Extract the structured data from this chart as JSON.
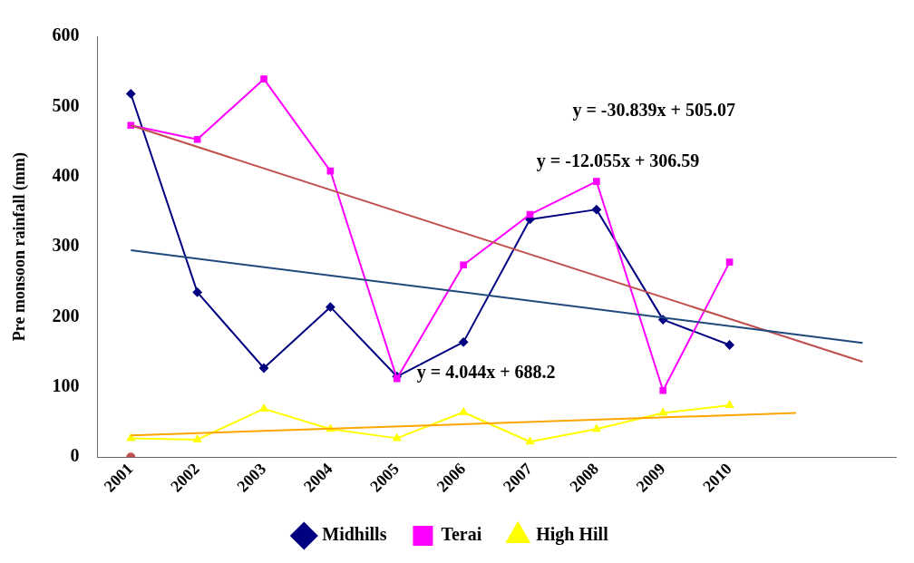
{
  "chart_data": {
    "type": "line",
    "ylabel": "Pre monsoon rainfall (mm)",
    "categories": [
      "2001",
      "2002",
      "2003",
      "2004",
      "2005",
      "2006",
      "2007",
      "2008",
      "2009",
      "2010",
      null,
      null
    ],
    "ylim": [
      0,
      600
    ],
    "yticks": [
      0,
      100,
      200,
      300,
      400,
      500,
      600
    ],
    "grid": false,
    "legend": "bottom",
    "line_style": "solid",
    "series": [
      {
        "name": "Midhills",
        "color": "#000080",
        "marker": "diamond",
        "values": [
          518,
          235,
          127,
          214,
          115,
          164,
          339,
          353,
          196,
          160,
          null,
          null
        ]
      },
      {
        "name": "Terai",
        "color": "#ff00ff",
        "marker": "square",
        "values": [
          473,
          453,
          539,
          408,
          112,
          274,
          346,
          393,
          95,
          278,
          null,
          null
        ]
      },
      {
        "name": "High Hill",
        "color": "#ffff00",
        "marker": "triangle",
        "values": [
          27,
          25,
          69,
          40,
          27,
          64,
          22,
          40,
          63,
          74,
          null,
          null
        ]
      },
      {
        "color": "#c0504d",
        "marker": "none",
        "values": [
          473,
          null,
          null,
          null,
          null,
          null,
          null,
          null,
          null,
          null,
          null,
          136
        ]
      },
      {
        "color": "#1f497d",
        "marker": "none",
        "values": [
          295,
          null,
          null,
          null,
          null,
          null,
          null,
          null,
          null,
          null,
          null,
          163
        ]
      },
      {
        "color": "#ffa500",
        "marker": "none",
        "values": [
          31,
          null,
          null,
          null,
          null,
          null,
          null,
          null,
          null,
          null,
          63,
          null
        ]
      },
      {
        "type": "scatter",
        "color": "#c0504d",
        "marker": "circle",
        "values": [
          0,
          null,
          null,
          null,
          null,
          null,
          null,
          null,
          null,
          null,
          null,
          null
        ]
      }
    ],
    "annotations": [
      "y = -30.839x + 505.07",
      "y = -12.055x + 306.59",
      "y = 4.044x + 688.2"
    ]
  }
}
